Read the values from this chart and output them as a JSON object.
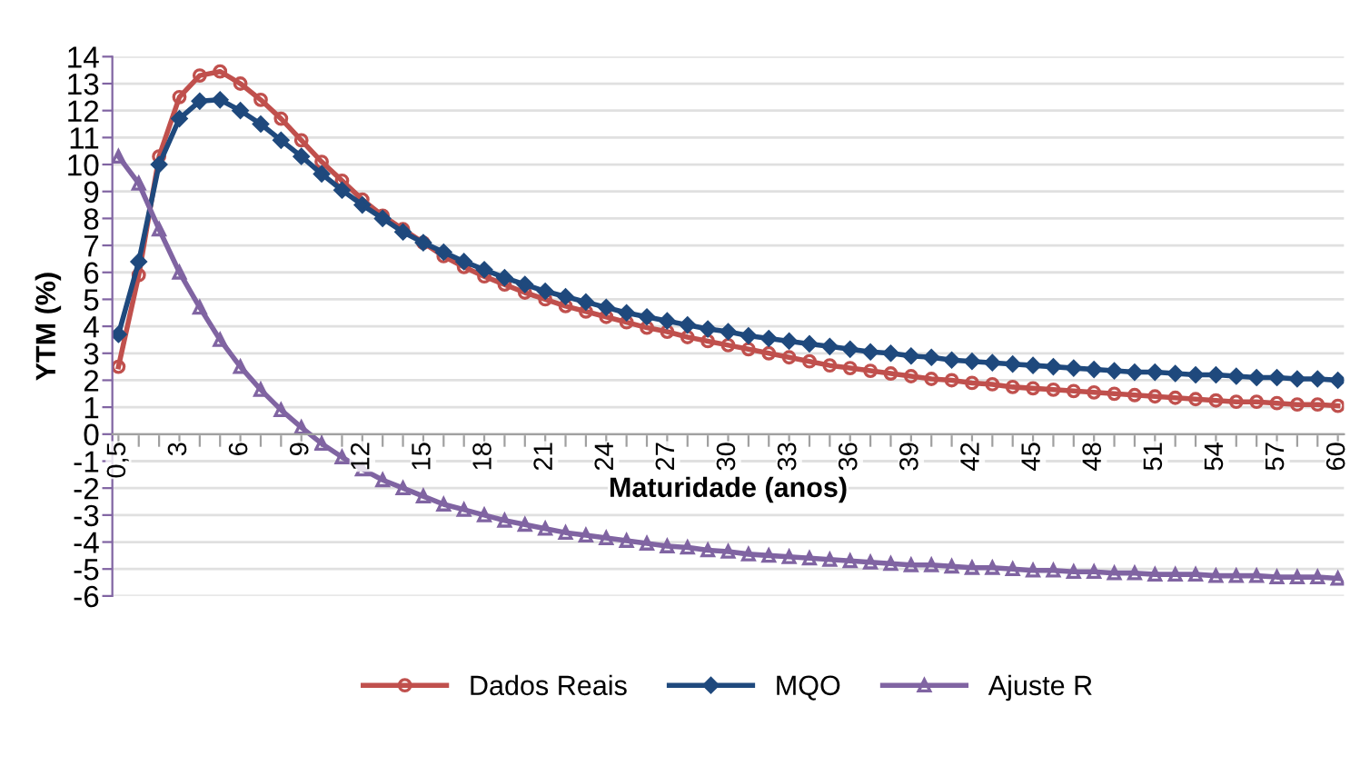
{
  "chart_data": {
    "type": "line",
    "xlabel": "Maturidade (anos)",
    "ylabel": "YTM (%)",
    "categories": [
      "0,5",
      null,
      null,
      "3",
      null,
      null,
      "6",
      null,
      null,
      "9",
      null,
      null,
      "12",
      null,
      null,
      "15",
      null,
      null,
      "18",
      null,
      null,
      "21",
      null,
      null,
      "24",
      null,
      null,
      "27",
      null,
      null,
      "30",
      null,
      null,
      "33",
      null,
      null,
      "36",
      null,
      null,
      "39",
      null,
      null,
      "42",
      null,
      null,
      "45",
      null,
      null,
      "48",
      null,
      null,
      "51",
      null,
      null,
      "54",
      null,
      null,
      "57",
      null,
      null,
      "60"
    ],
    "series": [
      {
        "name": "Dados Reais",
        "color": "#c0504d",
        "marker": "circle",
        "values": [
          2.5,
          5.9,
          10.3,
          12.5,
          13.3,
          13.45,
          13.0,
          12.4,
          11.7,
          10.9,
          10.1,
          9.4,
          8.7,
          8.1,
          7.6,
          7.1,
          6.6,
          6.2,
          5.85,
          5.55,
          5.25,
          5.0,
          4.75,
          4.55,
          4.35,
          4.15,
          3.95,
          3.8,
          3.6,
          3.45,
          3.3,
          3.15,
          3.0,
          2.85,
          2.7,
          2.55,
          2.45,
          2.35,
          2.25,
          2.15,
          2.05,
          2.0,
          1.9,
          1.85,
          1.75,
          1.7,
          1.65,
          1.6,
          1.55,
          1.5,
          1.45,
          1.4,
          1.35,
          1.3,
          1.25,
          1.2,
          1.2,
          1.15,
          1.1,
          1.1,
          1.05
        ]
      },
      {
        "name": "MQO",
        "color": "#1f497d",
        "marker": "diamond",
        "values": [
          3.7,
          6.4,
          10.0,
          11.7,
          12.35,
          12.4,
          12.0,
          11.5,
          10.9,
          10.3,
          9.65,
          9.05,
          8.5,
          8.0,
          7.5,
          7.1,
          6.75,
          6.4,
          6.1,
          5.8,
          5.55,
          5.3,
          5.1,
          4.9,
          4.7,
          4.5,
          4.35,
          4.2,
          4.05,
          3.9,
          3.8,
          3.65,
          3.55,
          3.45,
          3.35,
          3.25,
          3.15,
          3.05,
          3.0,
          2.9,
          2.85,
          2.75,
          2.7,
          2.65,
          2.6,
          2.55,
          2.5,
          2.45,
          2.4,
          2.35,
          2.3,
          2.3,
          2.25,
          2.2,
          2.2,
          2.15,
          2.1,
          2.1,
          2.05,
          2.05,
          2.0
        ]
      },
      {
        "name": "Ajuste R",
        "color": "#8064a2",
        "marker": "triangle",
        "values": [
          10.3,
          9.3,
          7.6,
          6.0,
          4.7,
          3.5,
          2.5,
          1.65,
          0.9,
          0.25,
          -0.35,
          -0.85,
          -1.3,
          -1.7,
          -2.0,
          -2.3,
          -2.6,
          -2.8,
          -3.0,
          -3.2,
          -3.35,
          -3.5,
          -3.65,
          -3.75,
          -3.85,
          -3.95,
          -4.05,
          -4.15,
          -4.2,
          -4.3,
          -4.35,
          -4.45,
          -4.5,
          -4.55,
          -4.6,
          -4.65,
          -4.7,
          -4.75,
          -4.8,
          -4.85,
          -4.85,
          -4.9,
          -4.95,
          -4.95,
          -5.0,
          -5.05,
          -5.05,
          -5.1,
          -5.1,
          -5.15,
          -5.15,
          -5.2,
          -5.2,
          -5.2,
          -5.25,
          -5.25,
          -5.25,
          -5.3,
          -5.3,
          -5.3,
          -5.35
        ]
      }
    ],
    "ylim": [
      -6,
      14
    ],
    "yticks": [
      -6,
      -5,
      -4,
      -3,
      -2,
      -1,
      0,
      1,
      2,
      3,
      4,
      5,
      6,
      7,
      8,
      9,
      10,
      11,
      12,
      13,
      14
    ],
    "grid": "y",
    "legend": "bottom",
    "line_style": "solid"
  }
}
